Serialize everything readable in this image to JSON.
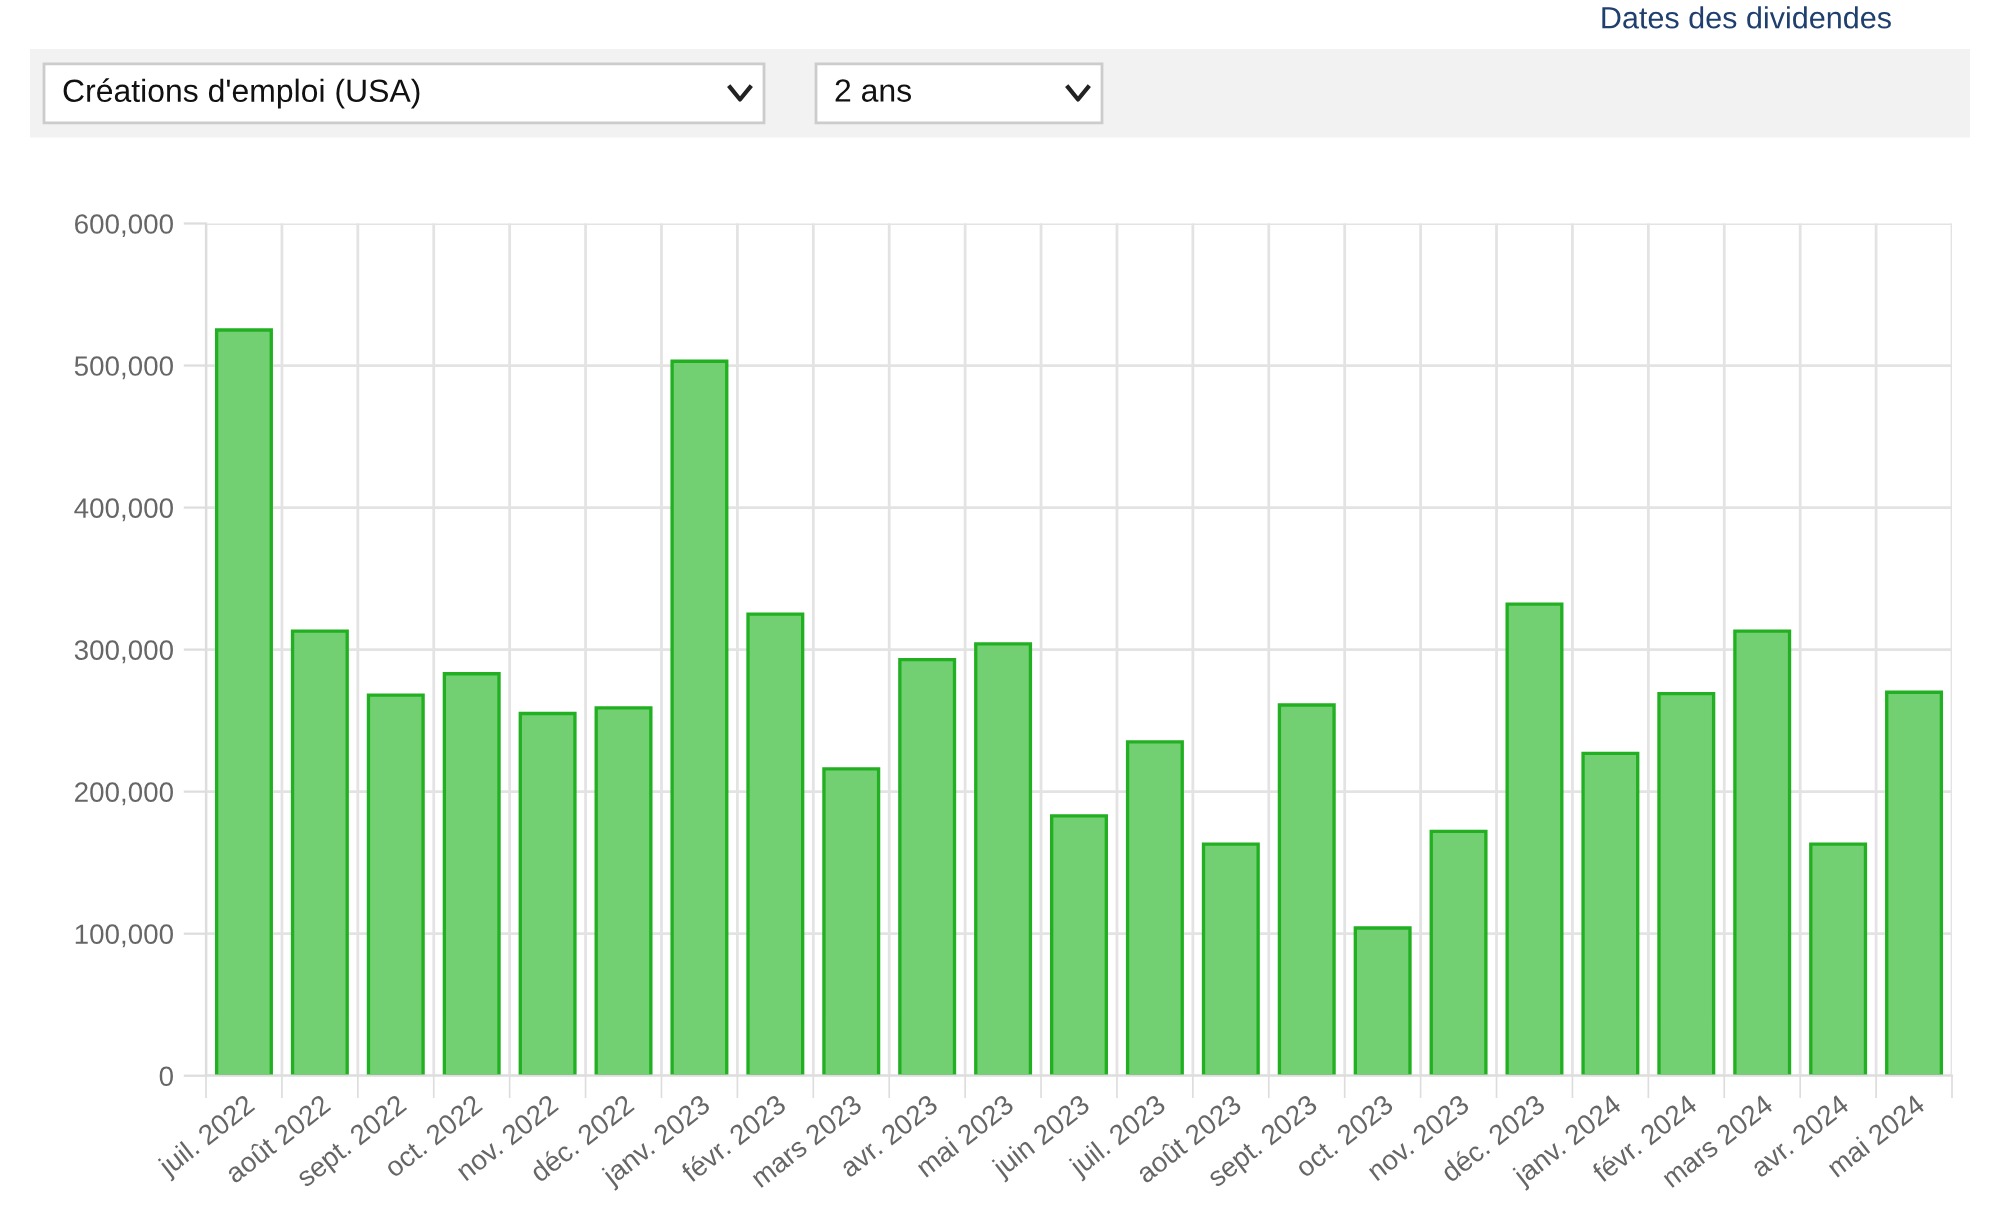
{
  "chart_data": {
    "type": "bar",
    "annotations": [
      "Dates des dividendes",
      "Créations d'emploi (USA)",
      "2 ans"
    ],
    "categories": [
      "juil. 2022",
      "août 2022",
      "sept. 2022",
      "oct. 2022",
      "nov. 2022",
      "déc. 2022",
      "janv. 2023",
      "févr. 2023",
      "mars 2023",
      "avr. 2023",
      "mai 2023",
      "juin 2023",
      "juil. 2023",
      "août 2023",
      "sept. 2023",
      "oct. 2023",
      "nov. 2023",
      "déc. 2023",
      "janv. 2024",
      "févr. 2024",
      "mars 2024",
      "avr. 2024",
      "mai 2024"
    ],
    "series": [
      {
        "color": "#72d072",
        "values": [
          525000,
          313000,
          268000,
          283000,
          255000,
          259000,
          503000,
          325000,
          216000,
          293000,
          304000,
          183000,
          235000,
          163000,
          261000,
          104000,
          172000,
          332000,
          227000,
          269000,
          313000,
          163000,
          270000
        ]
      }
    ],
    "ylim": [
      0,
      600000
    ],
    "yticks": [
      {
        "value": 0,
        "label": "0"
      },
      {
        "value": 100000,
        "label": "100,000"
      },
      {
        "value": 200000,
        "label": "200,000"
      },
      {
        "value": 300000,
        "label": "300,000"
      },
      {
        "value": 400000,
        "label": "400,000"
      },
      {
        "value": 500000,
        "label": "500,000"
      },
      {
        "value": 600000,
        "label": "600,000"
      }
    ],
    "grid": true,
    "legend": false
  }
}
